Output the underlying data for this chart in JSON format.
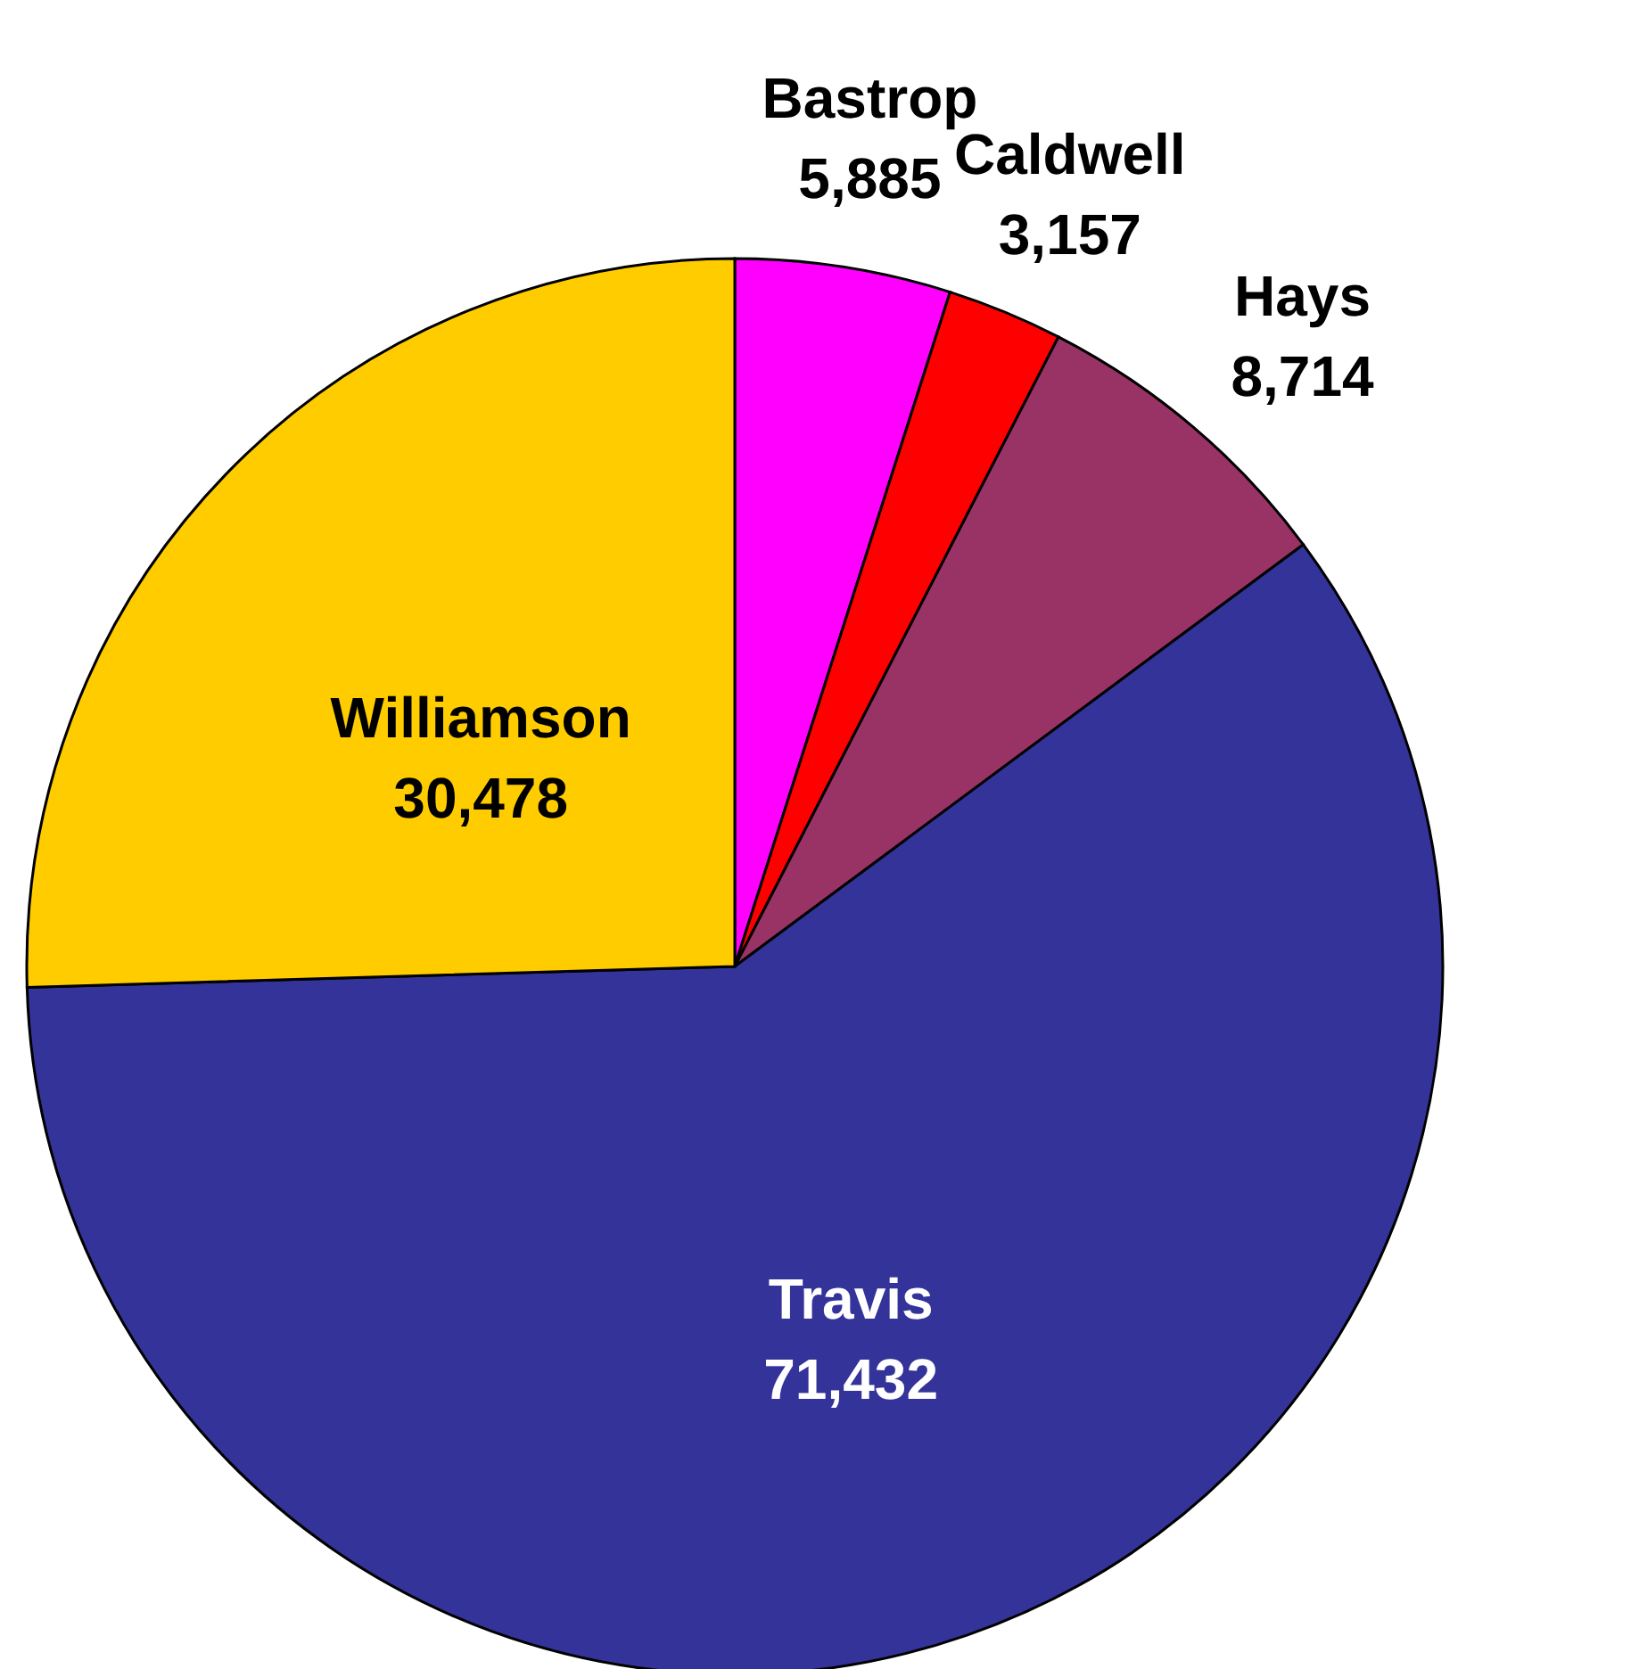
{
  "chart_data": {
    "type": "pie",
    "categories": [
      "Bastrop",
      "Caldwell",
      "Hays",
      "Travis",
      "Williamson"
    ],
    "values": [
      5885,
      3157,
      8714,
      71432,
      30478
    ],
    "colors": [
      "#ff00ff",
      "#ff0000",
      "#993366",
      "#333399",
      "#ffcc00"
    ],
    "value_labels": [
      "5,885",
      "3,157",
      "8,714",
      "71,432",
      "30,478"
    ]
  }
}
